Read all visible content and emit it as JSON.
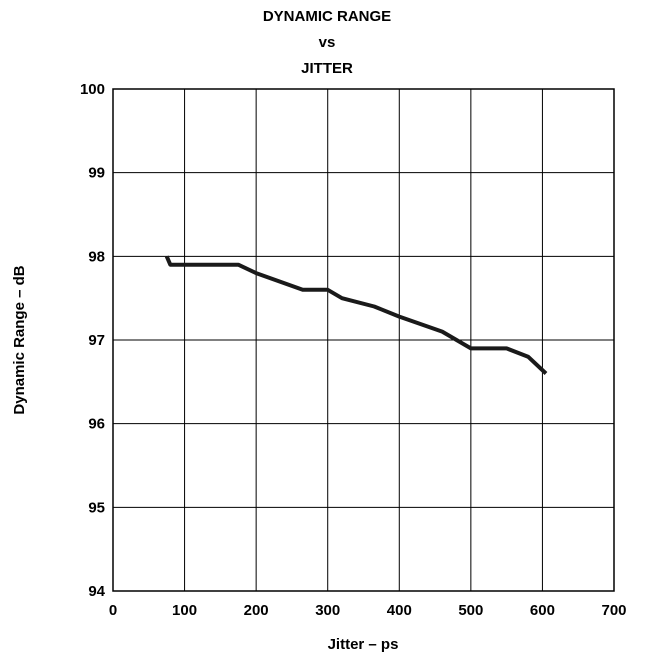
{
  "chart_data": {
    "type": "line",
    "title_lines": [
      "DYNAMIC RANGE",
      "vs",
      "JITTER"
    ],
    "xlabel": "Jitter – ps",
    "ylabel": "Dynamic Range – dB",
    "xlim": [
      0,
      700
    ],
    "ylim": [
      94,
      100
    ],
    "x_ticks": [
      0,
      100,
      200,
      300,
      400,
      500,
      600,
      700
    ],
    "y_ticks": [
      94,
      95,
      96,
      97,
      98,
      99,
      100
    ],
    "grid": true,
    "series": [
      {
        "color": "#1a1a1a",
        "points": [
          [
            75,
            98.0
          ],
          [
            80,
            97.9
          ],
          [
            100,
            97.9
          ],
          [
            175,
            97.9
          ],
          [
            200,
            97.8
          ],
          [
            265,
            97.6
          ],
          [
            300,
            97.6
          ],
          [
            320,
            97.5
          ],
          [
            365,
            97.4
          ],
          [
            400,
            97.28
          ],
          [
            460,
            97.1
          ],
          [
            500,
            96.9
          ],
          [
            550,
            96.9
          ],
          [
            580,
            96.8
          ],
          [
            605,
            96.6
          ]
        ]
      }
    ]
  }
}
